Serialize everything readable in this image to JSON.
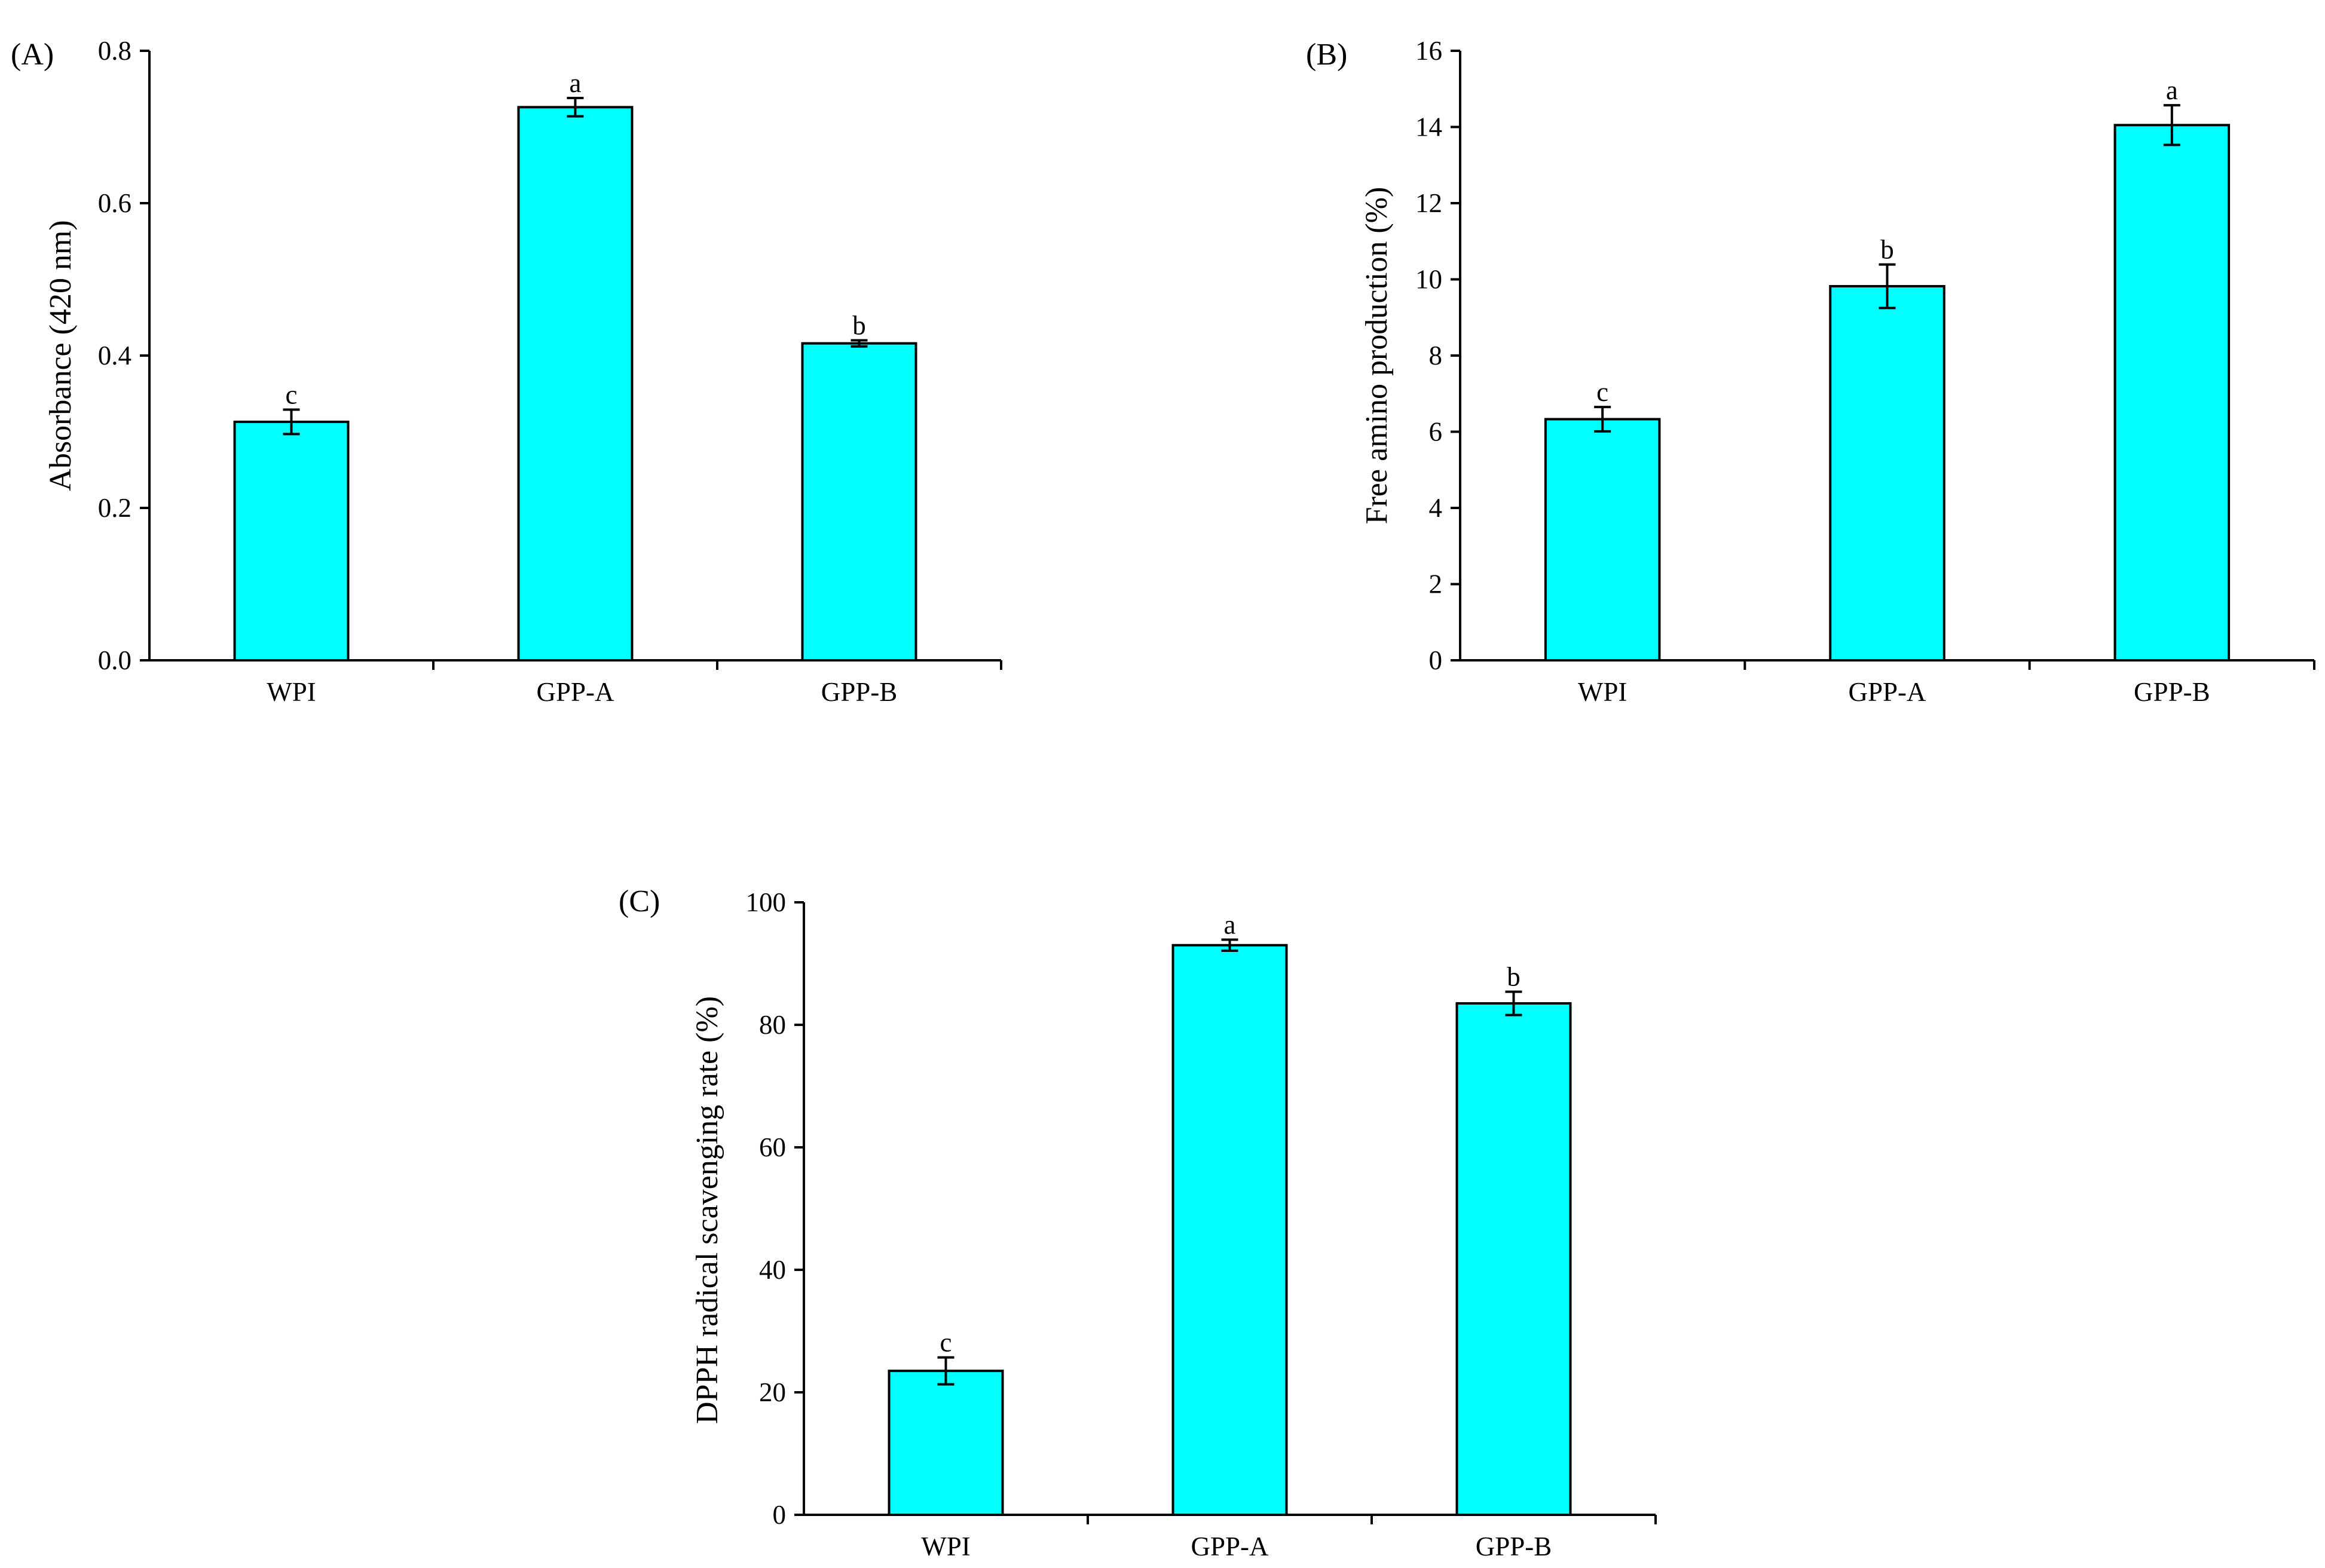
{
  "colors": {
    "bar_fill": "#00FFFF",
    "stroke": "#000000",
    "background": "#FFFFFF"
  },
  "chart_data": [
    {
      "type": "bar",
      "panel_label": "(A)",
      "title": "",
      "xlabel": "",
      "ylabel": "Absorbance (420 nm)",
      "categories": [
        "WPI",
        "GPP-A",
        "GPP-B"
      ],
      "values": [
        0.313,
        0.726,
        0.416
      ],
      "errors": [
        0.016,
        0.012,
        0.004
      ],
      "significance": [
        "c",
        "a",
        "b"
      ],
      "ylim": [
        0,
        0.8
      ],
      "yticks": [
        0.0,
        0.2,
        0.4,
        0.6,
        0.8
      ],
      "ytick_labels": [
        "0.0",
        "0.2",
        "0.4",
        "0.6",
        "0.8"
      ],
      "grid": false,
      "legend": "none"
    },
    {
      "type": "bar",
      "panel_label": "(B)",
      "title": "",
      "xlabel": "",
      "ylabel": "Free amino production (%)",
      "categories": [
        "WPI",
        "GPP-A",
        "GPP-B"
      ],
      "values": [
        6.33,
        9.82,
        14.05
      ],
      "errors": [
        0.32,
        0.57,
        0.52
      ],
      "significance": [
        "c",
        "b",
        "a"
      ],
      "ylim": [
        0,
        16
      ],
      "yticks": [
        0,
        2,
        4,
        6,
        8,
        10,
        12,
        14,
        16
      ],
      "ytick_labels": [
        "0",
        "2",
        "4",
        "6",
        "8",
        "10",
        "12",
        "14",
        "16"
      ],
      "grid": false,
      "legend": "none"
    },
    {
      "type": "bar",
      "panel_label": "(C)",
      "title": "",
      "xlabel": "",
      "ylabel": "DPPH radical scavenging rate (%)",
      "categories": [
        "WPI",
        "GPP-A",
        "GPP-B"
      ],
      "values": [
        23.5,
        93.0,
        83.5
      ],
      "errors": [
        2.2,
        0.9,
        1.9
      ],
      "significance": [
        "c",
        "a",
        "b"
      ],
      "ylim": [
        0,
        100
      ],
      "yticks": [
        0,
        20,
        40,
        60,
        80,
        100
      ],
      "ytick_labels": [
        "0",
        "20",
        "40",
        "60",
        "80",
        "100"
      ],
      "grid": false,
      "legend": "none"
    }
  ]
}
